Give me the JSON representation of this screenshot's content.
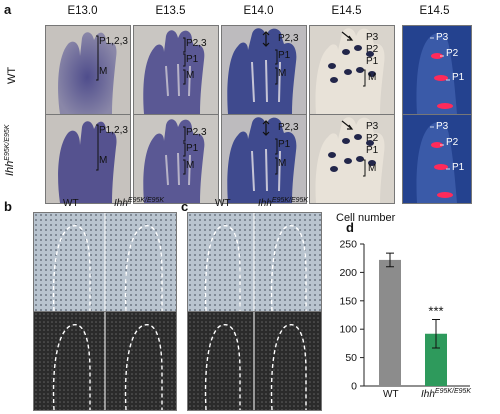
{
  "panel_labels": {
    "a": "a",
    "b": "b",
    "c": "c",
    "d": "d"
  },
  "panel_a": {
    "stages": [
      "E13.0",
      "E13.5",
      "E14.0",
      "E14.5",
      "E14.5"
    ],
    "row_wt": "WT",
    "row_mut_base": "Ihh",
    "row_mut_sup": "E95K/E95K",
    "wt_annotations": [
      {
        "top": "P1,2,3",
        "mid": "M"
      },
      {
        "top": "P2,3",
        "mid": "P1",
        "low": "M"
      },
      {
        "top": "P2,3",
        "mid": "P1",
        "low": "M"
      },
      {
        "top": "P3",
        "mid": "P2",
        "low": "P1",
        "extra": "M"
      },
      {
        "top": "P3",
        "mid": "P2",
        "low": "P1"
      }
    ],
    "mut_annotations": [
      {
        "top": "P1,2,3",
        "mid": "M"
      },
      {
        "top": "P2,3",
        "mid": "P1",
        "low": "M"
      },
      {
        "top": "P2,3",
        "mid": "P1",
        "low": "M"
      },
      {
        "top": "P3",
        "mid": "P2",
        "low": "P1",
        "extra": "M"
      },
      {
        "top": "P3",
        "mid": "P2",
        "low": "P1"
      }
    ]
  },
  "panel_b": {
    "label_wt": "WT",
    "label_mut_base": "Ihh",
    "label_mut_sup": "E95K/E95K"
  },
  "panel_c": {
    "label_wt": "WT",
    "label_mut_base": "Ihh",
    "label_mut_sup": "E95K/E95K"
  },
  "colors": {
    "bar_wt": "#8c8c8c",
    "bar_mut": "#2e9a5c",
    "sig_color": "#111111",
    "bg_blue": "#2b4e9a",
    "stain_red": "#ff2a5a"
  },
  "chart_data": {
    "type": "bar",
    "title": "Cell number",
    "categories": [
      "WT",
      "Ihh E95K/E95K"
    ],
    "category_labels": {
      "wt": "WT",
      "mut_base": "Ihh",
      "mut_sup": "E95K/E95K"
    },
    "values": [
      222,
      92
    ],
    "error": [
      12,
      25
    ],
    "significance": "***",
    "ylim": [
      0,
      250
    ],
    "yticks": [
      0,
      50,
      100,
      150,
      200,
      250
    ]
  }
}
